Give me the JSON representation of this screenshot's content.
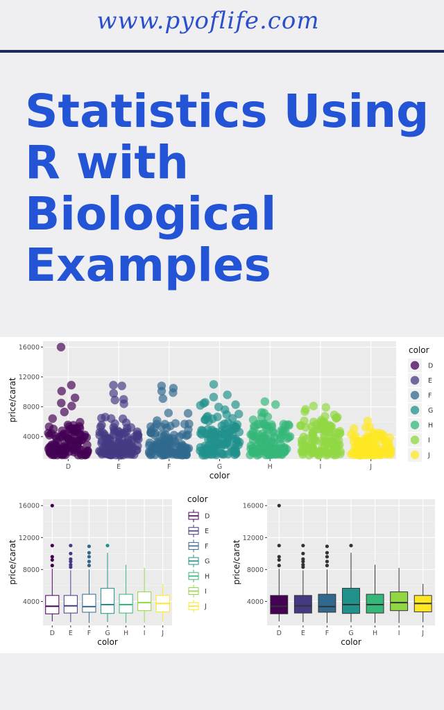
{
  "header": {
    "site": "www.pyoflife.com",
    "title_lines": [
      "Statistics Using",
      "R with",
      "Biological",
      "Examples"
    ]
  },
  "chart_data": [
    {
      "type": "scatter",
      "variant": "jitter",
      "xlabel": "color",
      "ylabel": "price/carat",
      "categories": [
        "D",
        "E",
        "F",
        "G",
        "H",
        "I",
        "J"
      ],
      "ylim": [
        1000,
        16800
      ],
      "yticks": [
        4000,
        8000,
        12000,
        16000
      ],
      "legend": {
        "title": "color",
        "placement": "right",
        "entries": [
          "D",
          "E",
          "F",
          "G",
          "H",
          "I",
          "J"
        ]
      },
      "grid": true,
      "colors": [
        "#440154",
        "#443983",
        "#31688e",
        "#21918c",
        "#35b779",
        "#90d743",
        "#fde725"
      ],
      "ranges": [
        {
          "low": 1500,
          "high": 6500,
          "max": 11000,
          "outliers": [
            16000,
            10900,
            10100,
            9200,
            8500,
            8100,
            7300
          ]
        },
        {
          "low": 1500,
          "high": 7000,
          "max": 11000,
          "outliers": [
            10900,
            10800,
            9800,
            9000,
            8900,
            8400
          ]
        },
        {
          "low": 1500,
          "high": 7500,
          "max": 10900,
          "outliers": [
            10800,
            10500,
            10100,
            9900,
            9100
          ]
        },
        {
          "low": 1500,
          "high": 8800,
          "max": 11000,
          "outliers": [
            11000,
            9600,
            9300
          ]
        },
        {
          "low": 1500,
          "high": 7500,
          "max": 8700,
          "outliers": [
            8700,
            8300
          ]
        },
        {
          "low": 1500,
          "high": 8000,
          "max": 8200,
          "outliers": [
            8100
          ]
        },
        {
          "low": 1500,
          "high": 5800,
          "max": 6200,
          "outliers": [
            6100
          ]
        }
      ]
    },
    {
      "type": "box",
      "style": "outline",
      "xlabel": "color",
      "ylabel": "price/carat",
      "categories": [
        "D",
        "E",
        "F",
        "G",
        "H",
        "I",
        "J"
      ],
      "ylim": [
        1000,
        16800
      ],
      "yticks": [
        4000,
        8000,
        12000,
        16000
      ],
      "legend": {
        "title": "color",
        "placement": "right",
        "entries": [
          "D",
          "E",
          "F",
          "G",
          "H",
          "I",
          "J"
        ]
      },
      "colors": [
        "#440154",
        "#443983",
        "#31688e",
        "#21918c",
        "#35b779",
        "#90d743",
        "#fde725"
      ],
      "boxes": [
        {
          "q1": 2450,
          "median": 3400,
          "q3": 4750,
          "wlow": 1500,
          "whigh": 8100,
          "outliers": [
            8500,
            9200,
            9600,
            11000,
            16000
          ]
        },
        {
          "q1": 2550,
          "median": 3450,
          "q3": 4750,
          "wlow": 1400,
          "whigh": 7900,
          "outliers": [
            8300,
            8600,
            9000,
            9300,
            10000,
            11000
          ]
        },
        {
          "q1": 2650,
          "median": 3350,
          "q3": 4900,
          "wlow": 1300,
          "whigh": 8000,
          "outliers": [
            8500,
            9000,
            9600,
            10100,
            10900
          ]
        },
        {
          "q1": 2500,
          "median": 3600,
          "q3": 5650,
          "wlow": 1400,
          "whigh": 10100,
          "outliers": [
            11000
          ]
        },
        {
          "q1": 2550,
          "median": 3600,
          "q3": 4900,
          "wlow": 1300,
          "whigh": 8600,
          "outliers": []
        },
        {
          "q1": 2850,
          "median": 3850,
          "q3": 5200,
          "wlow": 1300,
          "whigh": 8200,
          "outliers": []
        },
        {
          "q1": 2700,
          "median": 3750,
          "q3": 4750,
          "wlow": 1400,
          "whigh": 6200,
          "outliers": []
        }
      ]
    },
    {
      "type": "box",
      "style": "filled",
      "xlabel": "color",
      "ylabel": "price/carat",
      "categories": [
        "D",
        "E",
        "F",
        "G",
        "H",
        "I",
        "J"
      ],
      "ylim": [
        1000,
        16800
      ],
      "yticks": [
        4000,
        8000,
        12000,
        16000
      ],
      "colors": [
        "#440154",
        "#443983",
        "#31688e",
        "#21918c",
        "#35b779",
        "#90d743",
        "#fde725"
      ],
      "boxes": [
        {
          "q1": 2450,
          "median": 3400,
          "q3": 4750,
          "wlow": 1500,
          "whigh": 8100,
          "outliers": [
            8500,
            9200,
            9600,
            11000,
            16000
          ]
        },
        {
          "q1": 2550,
          "median": 3450,
          "q3": 4750,
          "wlow": 1400,
          "whigh": 7900,
          "outliers": [
            8300,
            8600,
            9000,
            9300,
            10000,
            11000
          ]
        },
        {
          "q1": 2650,
          "median": 3350,
          "q3": 4900,
          "wlow": 1300,
          "whigh": 8000,
          "outliers": [
            8500,
            9000,
            9600,
            10100,
            10900
          ]
        },
        {
          "q1": 2500,
          "median": 3600,
          "q3": 5650,
          "wlow": 1400,
          "whigh": 10100,
          "outliers": [
            11000
          ]
        },
        {
          "q1": 2550,
          "median": 3600,
          "q3": 4900,
          "wlow": 1300,
          "whigh": 8600,
          "outliers": []
        },
        {
          "q1": 2850,
          "median": 3850,
          "q3": 5200,
          "wlow": 1300,
          "whigh": 8200,
          "outliers": []
        },
        {
          "q1": 2700,
          "median": 3750,
          "q3": 4750,
          "wlow": 1400,
          "whigh": 6200,
          "outliers": []
        }
      ]
    }
  ]
}
